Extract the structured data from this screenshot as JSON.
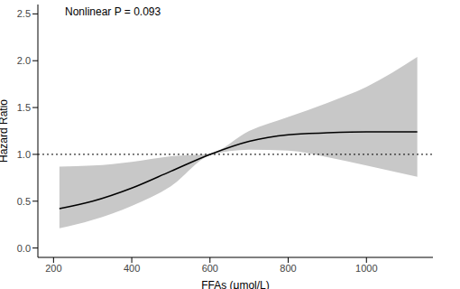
{
  "chart_data": {
    "type": "line",
    "annotation": "Nonlinear P = 0.093",
    "xlabel": "FFAs (μmol/L)",
    "ylabel": "Hazard Ratio",
    "x": [
      215,
      300,
      400,
      500,
      600,
      700,
      800,
      900,
      1000,
      1130
    ],
    "series": [
      {
        "name": "Hazard Ratio",
        "color": "#000000",
        "values": [
          0.42,
          0.5,
          0.64,
          0.82,
          1.0,
          1.14,
          1.21,
          1.23,
          1.24,
          1.24
        ]
      }
    ],
    "ci_lower": [
      0.21,
      0.3,
      0.45,
      0.66,
      0.99,
      1.05,
      1.04,
      0.97,
      0.88,
      0.76
    ],
    "ci_upper": [
      0.87,
      0.88,
      0.92,
      0.98,
      1.01,
      1.25,
      1.4,
      1.55,
      1.72,
      2.04
    ],
    "ci_color": "#c8c8c8",
    "reference_y": 1,
    "xlim": [
      160,
      1170
    ],
    "xticks": [
      200,
      400,
      600,
      800,
      1000
    ],
    "ylim": [
      -0.1,
      2.6
    ],
    "yticks": [
      {
        "value": 0,
        "label": "0.0"
      },
      0.5,
      {
        "value": 1,
        "label": "1.0"
      },
      1.5,
      {
        "value": 2,
        "label": "2.0"
      },
      2.5
    ],
    "grid": false
  }
}
